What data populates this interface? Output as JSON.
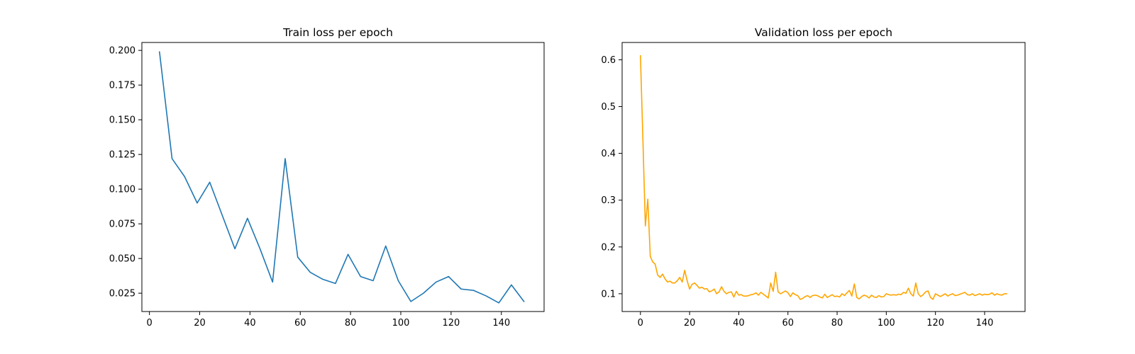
{
  "chart_data": [
    {
      "type": "line",
      "title": "Train loss per epoch",
      "xlabel": "",
      "ylabel": "",
      "xlim": [
        -3,
        157
      ],
      "ylim": [
        0.0118,
        0.2057
      ],
      "xticks": [
        0,
        20,
        40,
        60,
        80,
        100,
        120,
        140
      ],
      "yticks": [
        0.025,
        0.05,
        0.075,
        0.1,
        0.125,
        0.15,
        0.175,
        0.2
      ],
      "ytick_labels": [
        "0.025",
        "0.050",
        "0.075",
        "0.100",
        "0.125",
        "0.150",
        "0.175",
        "0.200"
      ],
      "grid": false,
      "series": [
        {
          "color": "#1f77b4",
          "x": [
            4,
            9,
            14,
            19,
            24,
            29,
            34,
            39,
            44,
            49,
            54,
            59,
            64,
            69,
            74,
            79,
            84,
            89,
            94,
            99,
            104,
            109,
            114,
            119,
            124,
            129,
            134,
            139,
            144,
            149
          ],
          "y": [
            0.199,
            0.122,
            0.109,
            0.09,
            0.105,
            0.081,
            0.057,
            0.079,
            0.057,
            0.033,
            0.122,
            0.051,
            0.04,
            0.035,
            0.032,
            0.053,
            0.037,
            0.034,
            0.059,
            0.034,
            0.019,
            0.025,
            0.033,
            0.037,
            0.028,
            0.027,
            0.023,
            0.018,
            0.031,
            0.019
          ]
        }
      ]
    },
    {
      "type": "line",
      "title": "Validation loss per epoch",
      "xlabel": "",
      "ylabel": "",
      "xlim": [
        -7.45,
        156.45
      ],
      "ylim": [
        0.062,
        0.637
      ],
      "xticks": [
        0,
        20,
        40,
        60,
        80,
        100,
        120,
        140
      ],
      "yticks": [
        0.1,
        0.2,
        0.3,
        0.4,
        0.5,
        0.6
      ],
      "ytick_labels": [
        "0.1",
        "0.2",
        "0.3",
        "0.4",
        "0.5",
        "0.6"
      ],
      "grid": false,
      "series": [
        {
          "color": "#ffa500",
          "x_start": 0,
          "x_step": 1,
          "y": [
            0.609,
            0.43,
            0.245,
            0.302,
            0.18,
            0.168,
            0.163,
            0.14,
            0.135,
            0.142,
            0.132,
            0.125,
            0.127,
            0.123,
            0.123,
            0.128,
            0.135,
            0.125,
            0.15,
            0.128,
            0.11,
            0.12,
            0.123,
            0.118,
            0.112,
            0.114,
            0.11,
            0.111,
            0.104,
            0.106,
            0.11,
            0.1,
            0.104,
            0.115,
            0.105,
            0.1,
            0.103,
            0.104,
            0.093,
            0.105,
            0.097,
            0.098,
            0.095,
            0.095,
            0.096,
            0.098,
            0.099,
            0.102,
            0.097,
            0.103,
            0.099,
            0.095,
            0.091,
            0.123,
            0.105,
            0.146,
            0.104,
            0.1,
            0.103,
            0.106,
            0.102,
            0.094,
            0.102,
            0.098,
            0.096,
            0.088,
            0.09,
            0.094,
            0.096,
            0.092,
            0.096,
            0.097,
            0.096,
            0.093,
            0.091,
            0.099,
            0.092,
            0.095,
            0.098,
            0.094,
            0.095,
            0.093,
            0.1,
            0.096,
            0.102,
            0.107,
            0.095,
            0.121,
            0.092,
            0.089,
            0.094,
            0.097,
            0.095,
            0.091,
            0.097,
            0.093,
            0.092,
            0.096,
            0.093,
            0.094,
            0.1,
            0.098,
            0.097,
            0.098,
            0.097,
            0.099,
            0.098,
            0.103,
            0.101,
            0.112,
            0.1,
            0.095,
            0.123,
            0.1,
            0.094,
            0.098,
            0.104,
            0.106,
            0.092,
            0.088,
            0.1,
            0.097,
            0.094,
            0.097,
            0.1,
            0.095,
            0.098,
            0.1,
            0.096,
            0.097,
            0.099,
            0.101,
            0.103,
            0.098,
            0.097,
            0.1,
            0.096,
            0.098,
            0.1,
            0.097,
            0.099,
            0.098,
            0.099,
            0.102,
            0.097,
            0.1,
            0.098,
            0.097,
            0.1,
            0.1
          ]
        }
      ]
    }
  ]
}
